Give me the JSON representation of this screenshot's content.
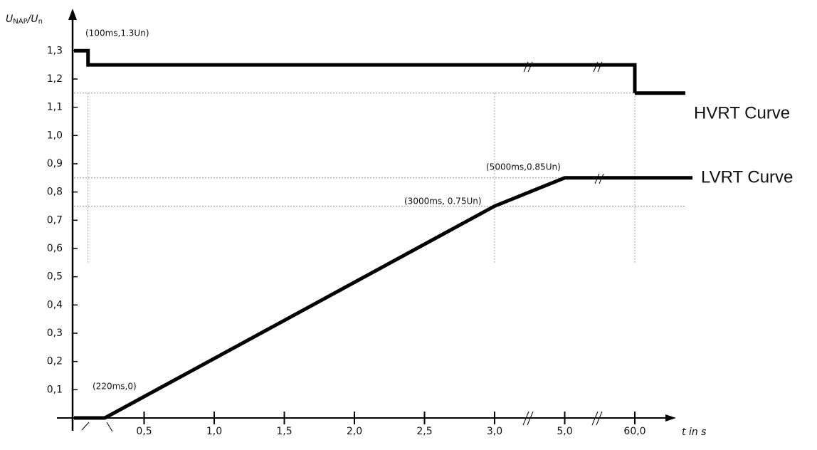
{
  "chart_data": {
    "type": "line",
    "y_label": {
      "main": "U",
      "sub": "NAP",
      "main2": "/U",
      "sub2": "n"
    },
    "x_label": "t in s",
    "xlim": [
      0,
      60
    ],
    "ylim": [
      0,
      1.4
    ],
    "xticks": [
      {
        "value": 0.5,
        "label": "0,5"
      },
      {
        "value": 1.0,
        "label": "1,0"
      },
      {
        "value": 1.5,
        "label": "1,5"
      },
      {
        "value": 2.0,
        "label": "2,0"
      },
      {
        "value": 2.5,
        "label": "2,5"
      },
      {
        "value": 3.0,
        "label": "3,0"
      },
      {
        "value": 5.0,
        "label": "5,0"
      },
      {
        "value": 60.0,
        "label": "60,0"
      }
    ],
    "yticks": [
      {
        "value": 0.1,
        "label": "0,1"
      },
      {
        "value": 0.2,
        "label": "0,2"
      },
      {
        "value": 0.3,
        "label": "0,3"
      },
      {
        "value": 0.4,
        "label": "0,4"
      },
      {
        "value": 0.5,
        "label": "0,5"
      },
      {
        "value": 0.6,
        "label": "0,6"
      },
      {
        "value": 0.7,
        "label": "0,7"
      },
      {
        "value": 0.8,
        "label": "0,8"
      },
      {
        "value": 0.9,
        "label": "0,9"
      },
      {
        "value": 1.0,
        "label": "1,0"
      },
      {
        "value": 1.1,
        "label": "1,1"
      },
      {
        "value": 1.2,
        "label": "1,2"
      },
      {
        "value": 1.3,
        "label": "1,3"
      }
    ],
    "series": [
      {
        "name": "HVRT Curve",
        "color": "#000000",
        "x": [
          0,
          0.1,
          0.1,
          60,
          60
        ],
        "values": [
          1.3,
          1.3,
          1.25,
          1.25,
          1.15
        ]
      },
      {
        "name": "LVRT Curve",
        "color": "#000000",
        "x": [
          0,
          0.22,
          3.0,
          5.0,
          60
        ],
        "values": [
          0,
          0,
          0.75,
          0.85,
          0.85
        ]
      }
    ],
    "guides": {
      "h": [
        1.15,
        0.85,
        0.75
      ],
      "v": [
        0.1,
        3.0,
        60
      ]
    },
    "annotations": [
      "(100ms,1.3Un)",
      "(220ms,0)",
      "(3000ms, 0.75Un)",
      "(5000ms,0.85Un)"
    ]
  }
}
